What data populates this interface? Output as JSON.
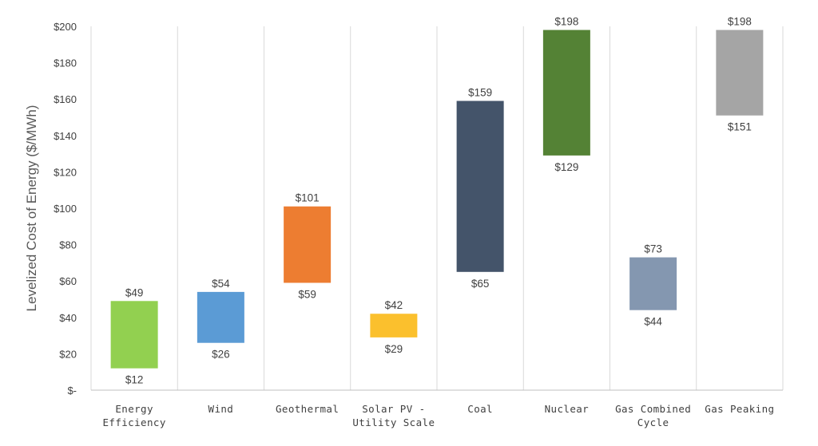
{
  "chart_data": {
    "type": "bar",
    "subtype": "floating-range",
    "ylabel": "Levelized Cost of Energy ($/MWh)",
    "ylim": [
      0,
      200
    ],
    "yticks": [
      {
        "value": 0,
        "label": "$-"
      },
      {
        "value": 20,
        "label": "$20"
      },
      {
        "value": 40,
        "label": "$40"
      },
      {
        "value": 60,
        "label": "$60"
      },
      {
        "value": 80,
        "label": "$80"
      },
      {
        "value": 100,
        "label": "$100"
      },
      {
        "value": 120,
        "label": "$120"
      },
      {
        "value": 140,
        "label": "$140"
      },
      {
        "value": 160,
        "label": "$160"
      },
      {
        "value": 180,
        "label": "$180"
      },
      {
        "value": 200,
        "label": "$200"
      }
    ],
    "grid": "vertical category separators",
    "legend": "none",
    "categories": [
      {
        "lines": [
          "Energy",
          "Efficiency"
        ],
        "low": 12,
        "high": 49,
        "low_label": "$12",
        "high_label": "$49",
        "color": "#92d050"
      },
      {
        "lines": [
          "Wind"
        ],
        "low": 26,
        "high": 54,
        "low_label": "$26",
        "high_label": "$54",
        "color": "#5b9bd5"
      },
      {
        "lines": [
          "Geothermal"
        ],
        "low": 59,
        "high": 101,
        "low_label": "$59",
        "high_label": "$101",
        "color": "#ed7d31"
      },
      {
        "lines": [
          "Solar PV -",
          "Utility Scale"
        ],
        "low": 29,
        "high": 42,
        "low_label": "$29",
        "high_label": "$42",
        "color": "#fbc02d"
      },
      {
        "lines": [
          "Coal"
        ],
        "low": 65,
        "high": 159,
        "low_label": "$65",
        "high_label": "$159",
        "color": "#44546a"
      },
      {
        "lines": [
          "Nuclear"
        ],
        "low": 129,
        "high": 198,
        "low_label": "$129",
        "high_label": "$198",
        "color": "#548235"
      },
      {
        "lines": [
          "Gas Combined",
          "Cycle"
        ],
        "low": 44,
        "high": 73,
        "low_label": "$44",
        "high_label": "$73",
        "color": "#8497b0"
      },
      {
        "lines": [
          "Gas Peaking"
        ],
        "low": 151,
        "high": 198,
        "low_label": "$151",
        "high_label": "$198",
        "color": "#a5a5a5"
      }
    ]
  }
}
